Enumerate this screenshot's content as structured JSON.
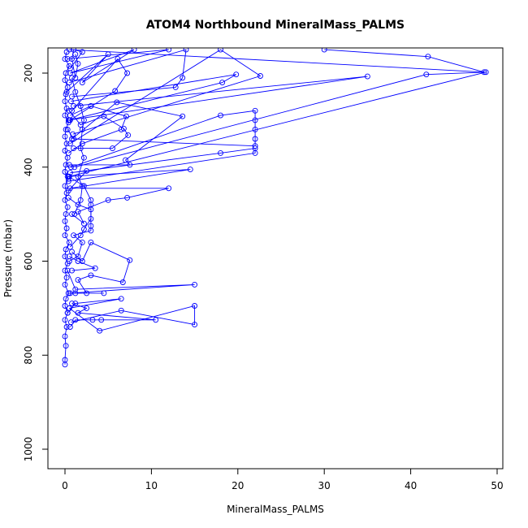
{
  "chart_data": {
    "type": "line",
    "title": "ATOM4 Northbound MineralMass_PALMS",
    "xlabel": "MineralMass_PALMS",
    "ylabel": "Pressure (mbar)",
    "xlim": [
      0,
      50
    ],
    "ylim": [
      1040,
      150
    ],
    "y_reversed": true,
    "x_ticks": [
      0,
      10,
      20,
      30,
      40,
      50
    ],
    "y_ticks": [
      200,
      400,
      600,
      800,
      1000
    ],
    "grid": false,
    "line_color": "#0000ff",
    "marker": "open-circle",
    "series": [
      {
        "values": [
          [
            0,
            820
          ],
          [
            0,
            810
          ],
          [
            0.1,
            780
          ],
          [
            0,
            760
          ],
          [
            0.2,
            740
          ],
          [
            0,
            725
          ],
          [
            0.3,
            710
          ],
          [
            0,
            695
          ],
          [
            0.1,
            680
          ],
          [
            0.4,
            668
          ],
          [
            0,
            650
          ],
          [
            0.2,
            635
          ],
          [
            0,
            620
          ],
          [
            0.3,
            605
          ],
          [
            0,
            590
          ],
          [
            0.1,
            575
          ],
          [
            0.5,
            560
          ],
          [
            0,
            545
          ],
          [
            0.2,
            530
          ],
          [
            0,
            515
          ],
          [
            0.1,
            500
          ],
          [
            0.3,
            485
          ],
          [
            0,
            470
          ],
          [
            0.2,
            455
          ],
          [
            0,
            440
          ],
          [
            0.4,
            425
          ],
          [
            0,
            410
          ],
          [
            0.1,
            395
          ],
          [
            0.3,
            380
          ],
          [
            0,
            365
          ],
          [
            0.2,
            350
          ],
          [
            0,
            335
          ],
          [
            0.1,
            320
          ],
          [
            0.4,
            305
          ],
          [
            0,
            290
          ],
          [
            0.2,
            275
          ],
          [
            0,
            260
          ],
          [
            0.1,
            245
          ],
          [
            0.3,
            230
          ],
          [
            0,
            215
          ],
          [
            0.1,
            200
          ],
          [
            0.5,
            185
          ],
          [
            0,
            170
          ],
          [
            0.2,
            155
          ]
        ]
      },
      {
        "values": [
          [
            0.6,
            740
          ],
          [
            1.2,
            725
          ],
          [
            3.2,
            725
          ],
          [
            4.2,
            725
          ],
          [
            10.5,
            725
          ],
          [
            1.5,
            710
          ],
          [
            2.5,
            700
          ],
          [
            0.8,
            690
          ]
        ]
      },
      {
        "values": [
          [
            0.7,
            730
          ],
          [
            6.5,
            705
          ],
          [
            15,
            735
          ],
          [
            15,
            695
          ],
          [
            4,
            748
          ],
          [
            0.5,
            700
          ]
        ]
      },
      {
        "values": [
          [
            0.4,
            668
          ],
          [
            1.2,
            668
          ],
          [
            4.5,
            668
          ],
          [
            2.5,
            668
          ],
          [
            1.5,
            640
          ],
          [
            3,
            630
          ],
          [
            6.7,
            645
          ],
          [
            7.5,
            598
          ],
          [
            3,
            560
          ],
          [
            2,
            600
          ],
          [
            0.8,
            580
          ]
        ]
      },
      {
        "values": [
          [
            0.6,
            668
          ],
          [
            15,
            650
          ],
          [
            1.2,
            660
          ],
          [
            0.3,
            620
          ]
        ]
      },
      {
        "values": [
          [
            0.5,
            600
          ],
          [
            1.5,
            590
          ],
          [
            2,
            560
          ],
          [
            1,
            545
          ],
          [
            3,
            535
          ],
          [
            3,
            525
          ],
          [
            3,
            480
          ],
          [
            3,
            470
          ],
          [
            2.2,
            440
          ],
          [
            0.4,
            420
          ]
        ]
      },
      {
        "values": [
          [
            0.8,
            500
          ],
          [
            2.2,
            520
          ],
          [
            1.5,
            495
          ],
          [
            5,
            470
          ],
          [
            7.2,
            465
          ],
          [
            12,
            445
          ],
          [
            0.6,
            445
          ],
          [
            14.5,
            405
          ],
          [
            0.3,
            420
          ]
        ]
      },
      {
        "values": [
          [
            0.4,
            430
          ],
          [
            22,
            370
          ],
          [
            22,
            360
          ],
          [
            18,
            370
          ],
          [
            0.6,
            412
          ],
          [
            2.5,
            408
          ],
          [
            0.4,
            450
          ]
        ]
      },
      {
        "values": [
          [
            0.7,
            400
          ],
          [
            18,
            290
          ],
          [
            22,
            280
          ],
          [
            22,
            300
          ],
          [
            22,
            320
          ],
          [
            22,
            340
          ],
          [
            22,
            355
          ],
          [
            1,
            340
          ],
          [
            0.3,
            320
          ]
        ]
      },
      {
        "values": [
          [
            0.5,
            395
          ],
          [
            7.5,
            395
          ],
          [
            7,
            385
          ],
          [
            13.6,
            292
          ],
          [
            6,
            262
          ],
          [
            0.8,
            340
          ]
        ]
      },
      {
        "values": [
          [
            1,
            360
          ],
          [
            5.5,
            360
          ],
          [
            7.3,
            332
          ],
          [
            6.8,
            318
          ],
          [
            4.5,
            292
          ],
          [
            1.8,
            310
          ],
          [
            0.5,
            280
          ]
        ]
      },
      {
        "values": [
          [
            0.6,
            290
          ],
          [
            3,
            270
          ],
          [
            7.1,
            292
          ],
          [
            6.5,
            320
          ],
          [
            2,
            350
          ],
          [
            0.4,
            370
          ]
        ]
      },
      {
        "values": [
          [
            0.6,
            300
          ],
          [
            5.8,
            238
          ],
          [
            7.2,
            200
          ],
          [
            6.1,
            170
          ],
          [
            0.8,
            280
          ]
        ]
      },
      {
        "values": [
          [
            0.8,
            250
          ],
          [
            12.8,
            230
          ],
          [
            13.6,
            210
          ],
          [
            14,
            150
          ],
          [
            0.5,
            220
          ]
        ]
      },
      {
        "values": [
          [
            0.7,
            260
          ],
          [
            19.8,
            203
          ],
          [
            18.2,
            220
          ],
          [
            0.5,
            300
          ]
        ]
      },
      {
        "values": [
          [
            0.9,
            330
          ],
          [
            22.6,
            206
          ],
          [
            18,
            150
          ],
          [
            0.6,
            350
          ]
        ]
      },
      {
        "values": [
          [
            1,
            270
          ],
          [
            35,
            207
          ],
          [
            0.4,
            300
          ]
        ]
      },
      {
        "values": [
          [
            1.1,
            400
          ],
          [
            41.8,
            203
          ],
          [
            48.7,
            198
          ],
          [
            0.5,
            420
          ]
        ]
      },
      {
        "values": [
          [
            0.5,
            150
          ],
          [
            48.5,
            198
          ],
          [
            42,
            165
          ],
          [
            30,
            150
          ]
        ]
      },
      {
        "values": [
          [
            0.3,
            170
          ],
          [
            12,
            150
          ],
          [
            0.6,
            200
          ],
          [
            8,
            150
          ],
          [
            2,
            220
          ],
          [
            5,
            160
          ],
          [
            0.2,
            240
          ]
        ]
      },
      {
        "values": [
          [
            1.2,
            160
          ],
          [
            1.5,
            180
          ],
          [
            1.2,
            210
          ],
          [
            0.8,
            170
          ],
          [
            1,
            150
          ],
          [
            2,
            155
          ],
          [
            0.6,
            190
          ]
        ]
      },
      {
        "values": [
          [
            0.5,
            700
          ],
          [
            6.5,
            680
          ],
          [
            1.2,
            690
          ],
          [
            0.3,
            710
          ]
        ]
      },
      {
        "values": [
          [
            0.6,
            570
          ],
          [
            1.8,
            545
          ],
          [
            2.2,
            532
          ],
          [
            3,
            510
          ],
          [
            3,
            490
          ],
          [
            1.5,
            480
          ],
          [
            0.4,
            465
          ]
        ]
      },
      {
        "values": [
          [
            0.8,
            620
          ],
          [
            3.5,
            615
          ],
          [
            1.5,
            600
          ],
          [
            0.5,
            590
          ]
        ]
      },
      {
        "values": [
          [
            1.1,
            500
          ],
          [
            1.8,
            470
          ],
          [
            2,
            440
          ],
          [
            1.5,
            420
          ],
          [
            2.2,
            380
          ],
          [
            1.8,
            360
          ],
          [
            2,
            320
          ],
          [
            2.2,
            300
          ],
          [
            1.8,
            270
          ],
          [
            1.2,
            240
          ],
          [
            0.8,
            210
          ]
        ]
      }
    ]
  }
}
